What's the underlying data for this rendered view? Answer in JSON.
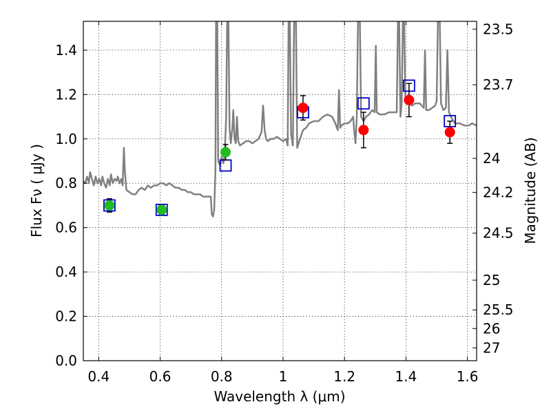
{
  "chart_data": {
    "type": "scatter",
    "xlabel": "Wavelength  λ (μm)",
    "ylabel": "Flux  Fν  ( μJy )",
    "ylabel_right": "Magnitude (AB)",
    "xlim": [
      0.35,
      1.63
    ],
    "ylim": [
      0.0,
      1.53
    ],
    "grid": true,
    "x_ticks": [
      {
        "value": 0.4,
        "label": "0.4"
      },
      {
        "value": 0.6,
        "label": "0.6"
      },
      {
        "value": 0.8,
        "label": "0.8"
      },
      {
        "value": 1.0,
        "label": "1"
      },
      {
        "value": 1.2,
        "label": "1.2"
      },
      {
        "value": 1.4,
        "label": "1.4"
      },
      {
        "value": 1.6,
        "label": "1.6"
      }
    ],
    "y_ticks": [
      {
        "value": 0.0,
        "label": "0.0"
      },
      {
        "value": 0.2,
        "label": "0.2"
      },
      {
        "value": 0.4,
        "label": "0.4"
      },
      {
        "value": 0.6,
        "label": "0.6"
      },
      {
        "value": 0.8,
        "label": "0.8"
      },
      {
        "value": 1.0,
        "label": "1.0"
      },
      {
        "value": 1.2,
        "label": "1.2"
      },
      {
        "value": 1.4,
        "label": "1.4"
      }
    ],
    "magnitude_ticks": [
      {
        "flux": 1.495,
        "label": "23.5"
      },
      {
        "flux": 1.244,
        "label": "23.7"
      },
      {
        "flux": 0.912,
        "label": "24"
      },
      {
        "flux": 0.759,
        "label": "24.2"
      },
      {
        "flux": 0.575,
        "label": "24.5"
      },
      {
        "flux": 0.363,
        "label": "25"
      },
      {
        "flux": 0.229,
        "label": "25.5"
      },
      {
        "flux": 0.145,
        "label": "26"
      },
      {
        "flux": 0.058,
        "label": "27"
      }
    ],
    "series": [
      {
        "type": "line",
        "color": "#808080",
        "points": [
          [
            0.35,
            0.81
          ],
          [
            0.356,
            0.8
          ],
          [
            0.362,
            0.83
          ],
          [
            0.368,
            0.8
          ],
          [
            0.372,
            0.85
          ],
          [
            0.378,
            0.82
          ],
          [
            0.384,
            0.79
          ],
          [
            0.39,
            0.83
          ],
          [
            0.396,
            0.8
          ],
          [
            0.402,
            0.82
          ],
          [
            0.408,
            0.79
          ],
          [
            0.412,
            0.83
          ],
          [
            0.418,
            0.8
          ],
          [
            0.424,
            0.78
          ],
          [
            0.43,
            0.82
          ],
          [
            0.436,
            0.79
          ],
          [
            0.44,
            0.84
          ],
          [
            0.446,
            0.8
          ],
          [
            0.452,
            0.82
          ],
          [
            0.458,
            0.81
          ],
          [
            0.462,
            0.83
          ],
          [
            0.468,
            0.8
          ],
          [
            0.474,
            0.82
          ],
          [
            0.478,
            0.79
          ],
          [
            0.482,
            0.96
          ],
          [
            0.485,
            0.86
          ],
          [
            0.49,
            0.77
          ],
          [
            0.5,
            0.76
          ],
          [
            0.51,
            0.75
          ],
          [
            0.52,
            0.75
          ],
          [
            0.53,
            0.77
          ],
          [
            0.54,
            0.78
          ],
          [
            0.55,
            0.77
          ],
          [
            0.56,
            0.79
          ],
          [
            0.57,
            0.78
          ],
          [
            0.58,
            0.79
          ],
          [
            0.59,
            0.79
          ],
          [
            0.6,
            0.8
          ],
          [
            0.61,
            0.8
          ],
          [
            0.62,
            0.79
          ],
          [
            0.63,
            0.8
          ],
          [
            0.64,
            0.79
          ],
          [
            0.65,
            0.78
          ],
          [
            0.66,
            0.78
          ],
          [
            0.67,
            0.77
          ],
          [
            0.68,
            0.77
          ],
          [
            0.69,
            0.76
          ],
          [
            0.7,
            0.76
          ],
          [
            0.71,
            0.75
          ],
          [
            0.72,
            0.75
          ],
          [
            0.73,
            0.75
          ],
          [
            0.74,
            0.74
          ],
          [
            0.75,
            0.74
          ],
          [
            0.76,
            0.74
          ],
          [
            0.765,
            0.74
          ],
          [
            0.768,
            0.66
          ],
          [
            0.772,
            0.65
          ],
          [
            0.776,
            0.68
          ],
          [
            0.78,
            0.86
          ],
          [
            0.782,
            1.53
          ],
          [
            0.786,
            1.53
          ],
          [
            0.789,
            0.9
          ],
          [
            0.795,
            0.88
          ],
          [
            0.8,
            0.92
          ],
          [
            0.806,
            0.89
          ],
          [
            0.81,
            0.93
          ],
          [
            0.815,
            1.1
          ],
          [
            0.818,
            1.53
          ],
          [
            0.822,
            1.53
          ],
          [
            0.826,
            1.05
          ],
          [
            0.83,
            0.98
          ],
          [
            0.835,
            1.05
          ],
          [
            0.838,
            1.13
          ],
          [
            0.842,
            1.0
          ],
          [
            0.846,
            0.98
          ],
          [
            0.85,
            1.1
          ],
          [
            0.854,
            0.99
          ],
          [
            0.86,
            0.97
          ],
          [
            0.87,
            0.98
          ],
          [
            0.88,
            0.99
          ],
          [
            0.89,
            0.99
          ],
          [
            0.9,
            0.98
          ],
          [
            0.91,
            0.99
          ],
          [
            0.92,
            1.0
          ],
          [
            0.93,
            1.03
          ],
          [
            0.935,
            1.15
          ],
          [
            0.94,
            1.04
          ],
          [
            0.945,
            1.0
          ],
          [
            0.95,
            0.99
          ],
          [
            0.96,
            1.0
          ],
          [
            0.97,
            1.0
          ],
          [
            0.98,
            1.01
          ],
          [
            0.99,
            1.0
          ],
          [
            1.0,
            0.99
          ],
          [
            1.01,
            1.0
          ],
          [
            1.015,
            0.97
          ],
          [
            1.018,
            1.53
          ],
          [
            1.022,
            1.53
          ],
          [
            1.026,
            1.02
          ],
          [
            1.032,
            0.97
          ],
          [
            1.036,
            1.53
          ],
          [
            1.042,
            1.53
          ],
          [
            1.046,
            0.96
          ],
          [
            1.055,
            1.0
          ],
          [
            1.065,
            1.04
          ],
          [
            1.075,
            1.05
          ],
          [
            1.085,
            1.07
          ],
          [
            1.1,
            1.08
          ],
          [
            1.115,
            1.08
          ],
          [
            1.13,
            1.1
          ],
          [
            1.145,
            1.11
          ],
          [
            1.16,
            1.1
          ],
          [
            1.17,
            1.07
          ],
          [
            1.178,
            1.04
          ],
          [
            1.182,
            1.22
          ],
          [
            1.186,
            1.05
          ],
          [
            1.19,
            1.06
          ],
          [
            1.2,
            1.07
          ],
          [
            1.21,
            1.07
          ],
          [
            1.22,
            1.08
          ],
          [
            1.228,
            1.1
          ],
          [
            1.232,
            1.03
          ],
          [
            1.236,
            0.98
          ],
          [
            1.24,
            1.1
          ],
          [
            1.244,
            1.53
          ],
          [
            1.25,
            1.53
          ],
          [
            1.254,
            1.1
          ],
          [
            1.262,
            1.08
          ],
          [
            1.27,
            1.1
          ],
          [
            1.28,
            1.11
          ],
          [
            1.29,
            1.13
          ],
          [
            1.298,
            1.12
          ],
          [
            1.302,
            1.42
          ],
          [
            1.305,
            1.12
          ],
          [
            1.315,
            1.11
          ],
          [
            1.33,
            1.11
          ],
          [
            1.345,
            1.12
          ],
          [
            1.36,
            1.12
          ],
          [
            1.37,
            1.12
          ],
          [
            1.374,
            1.53
          ],
          [
            1.378,
            1.53
          ],
          [
            1.382,
            1.1
          ],
          [
            1.386,
            1.16
          ],
          [
            1.39,
            1.53
          ],
          [
            1.394,
            1.53
          ],
          [
            1.398,
            1.18
          ],
          [
            1.41,
            1.16
          ],
          [
            1.42,
            1.15
          ],
          [
            1.43,
            1.16
          ],
          [
            1.445,
            1.16
          ],
          [
            1.458,
            1.14
          ],
          [
            1.462,
            1.4
          ],
          [
            1.466,
            1.13
          ],
          [
            1.475,
            1.13
          ],
          [
            1.485,
            1.14
          ],
          [
            1.495,
            1.15
          ],
          [
            1.5,
            1.17
          ],
          [
            1.504,
            1.53
          ],
          [
            1.51,
            1.53
          ],
          [
            1.514,
            1.16
          ],
          [
            1.522,
            1.13
          ],
          [
            1.53,
            1.14
          ],
          [
            1.535,
            1.4
          ],
          [
            1.54,
            1.12
          ],
          [
            1.55,
            1.09
          ],
          [
            1.56,
            1.07
          ],
          [
            1.575,
            1.07
          ],
          [
            1.59,
            1.06
          ],
          [
            1.605,
            1.06
          ],
          [
            1.615,
            1.07
          ],
          [
            1.63,
            1.06
          ]
        ]
      },
      {
        "type": "scatter",
        "marker": "open-square",
        "color": "#0000cc",
        "points": [
          [
            0.435,
            0.7
          ],
          [
            0.605,
            0.68
          ],
          [
            0.813,
            0.88
          ],
          [
            1.065,
            1.12
          ],
          [
            1.262,
            1.16
          ],
          [
            1.41,
            1.24
          ],
          [
            1.543,
            1.08
          ]
        ]
      },
      {
        "type": "scatter",
        "marker": "circle",
        "color": "#22bb22",
        "points": [
          [
            0.435,
            0.7,
            0.03
          ],
          [
            0.605,
            0.68,
            0.02
          ],
          [
            0.813,
            0.94,
            0.035
          ]
        ]
      },
      {
        "type": "scatter",
        "marker": "circle",
        "color": "#ff0000",
        "points": [
          [
            1.065,
            1.14,
            0.055
          ],
          [
            1.262,
            1.04,
            0.08
          ],
          [
            1.41,
            1.175,
            0.075
          ],
          [
            1.543,
            1.03,
            0.05
          ]
        ]
      }
    ]
  }
}
